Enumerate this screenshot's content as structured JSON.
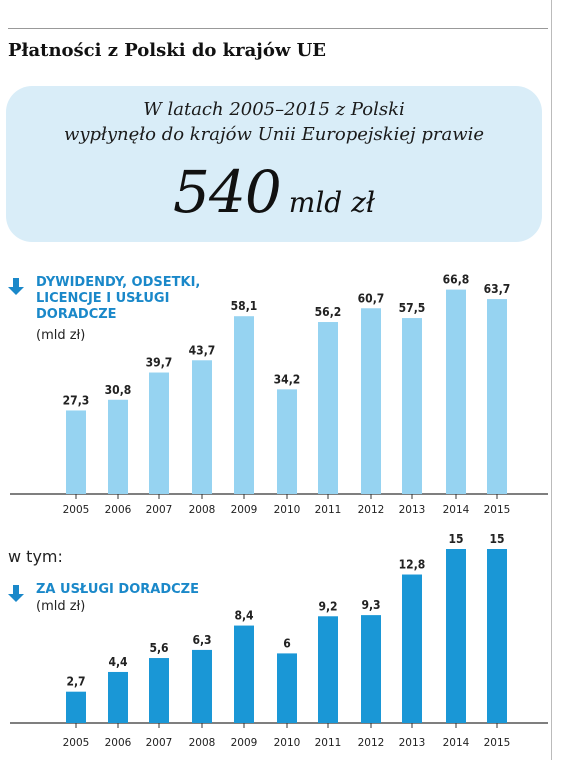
{
  "title": "Płatności z Polski do krajów UE",
  "highlight": {
    "line1": "W latach 2005–2015 z Polski",
    "line2": "wypłynęło do krajów Unii Europejskiej prawie",
    "value": "540",
    "unit": "mld zł"
  },
  "wtym": "w tym:",
  "colors": {
    "light_bar": "#96d3f1",
    "dark_bar": "#1a97d6",
    "label": "#1a88c9",
    "box": "#d9edf8"
  },
  "chart_data": [
    {
      "type": "bar",
      "title_lines": [
        "DYWIDENDY, ODSETKI,",
        "LICENCJE I USŁUGI",
        "DORADCZE"
      ],
      "unit": "(mld zł)",
      "categories": [
        "2005",
        "2006",
        "2007",
        "2008",
        "2009",
        "2010",
        "2011",
        "2012",
        "2013",
        "2014",
        "2015"
      ],
      "values": [
        27.3,
        30.8,
        39.7,
        43.7,
        58.1,
        34.2,
        56.2,
        60.7,
        57.5,
        66.8,
        63.7
      ],
      "value_labels": [
        "27,3",
        "30,8",
        "39,7",
        "43,7",
        "58,1",
        "34,2",
        "56,2",
        "60,7",
        "57,5",
        "66,8",
        "63,7"
      ]
    },
    {
      "type": "bar",
      "title_lines": [
        "ZA USŁUGI DORADCZE"
      ],
      "unit": "(mld zł)",
      "categories": [
        "2005",
        "2006",
        "2007",
        "2008",
        "2009",
        "2010",
        "2011",
        "2012",
        "2013",
        "2014",
        "2015"
      ],
      "values": [
        2.7,
        4.4,
        5.6,
        6.3,
        8.4,
        6,
        9.2,
        9.3,
        12.8,
        15,
        15
      ],
      "value_labels": [
        "2,7",
        "4,4",
        "5,6",
        "6,3",
        "8,4",
        "6",
        "9,2",
        "9,3",
        "12,8",
        "15",
        "15"
      ]
    }
  ]
}
